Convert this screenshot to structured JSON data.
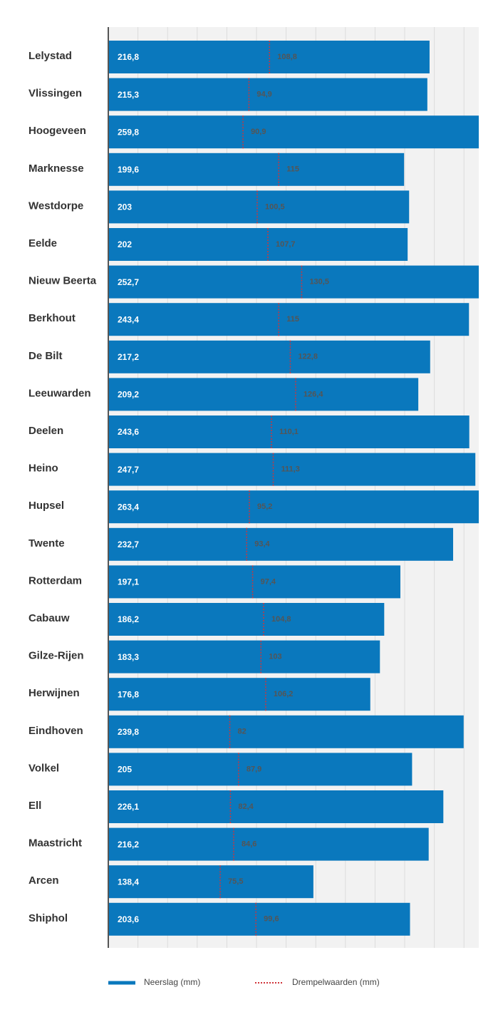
{
  "chart_data": {
    "type": "bar",
    "orientation": "horizontal",
    "categories": [
      "Lelystad",
      "Vlissingen",
      "Hoogeveen",
      "Marknesse",
      "Westdorpe",
      "Eelde",
      "Nieuw Beerta",
      "Berkhout",
      "De Bilt",
      "Leeuwarden",
      "Deelen",
      "Heino",
      "Hupsel",
      "Twente",
      "Rotterdam",
      "Cabauw",
      "Gilze-Rijen",
      "Herwijnen",
      "Eindhoven",
      "Volkel",
      "Ell",
      "Maastricht",
      "Arcen",
      "Shiphol"
    ],
    "series": [
      {
        "name": "Neerslag (mm)",
        "color": "#0a78bd",
        "values": [
          216.8,
          215.3,
          259.8,
          199.6,
          203,
          202,
          252.7,
          243.4,
          217.2,
          209.2,
          243.6,
          247.7,
          263.4,
          232.7,
          197.1,
          186.2,
          183.3,
          176.8,
          239.8,
          205,
          226.1,
          216.2,
          138.4,
          203.6
        ],
        "value_labels": [
          "216,8",
          "215,3",
          "259,8",
          "199,6",
          "203",
          "202",
          "252,7",
          "243,4",
          "217,2",
          "209,2",
          "243,6",
          "247,7",
          "263,4",
          "232,7",
          "197,1",
          "186,2",
          "183,3",
          "176,8",
          "239,8",
          "205",
          "226,1",
          "216,2",
          "138,4",
          "203,6"
        ]
      },
      {
        "name": "Drempelwaarden (mm)",
        "color": "#d0343a",
        "values": [
          108.8,
          94.9,
          90.9,
          115,
          100.5,
          107.7,
          130.5,
          115,
          122.8,
          126.4,
          110.1,
          111.3,
          95.2,
          93.4,
          97.4,
          104.8,
          103,
          106.2,
          82,
          87.9,
          82.4,
          84.6,
          75.5,
          99.6
        ],
        "value_labels": [
          "108,8",
          "94,9",
          "90,9",
          "115",
          "100,5",
          "107,7",
          "130,5",
          "115",
          "122,8",
          "126,4",
          "110,1",
          "111,3",
          "95,2",
          "93,4",
          "97,4",
          "104,8",
          "103",
          "106,2",
          "82",
          "87,9",
          "82,4",
          "84,6",
          "75,5",
          "99,6"
        ]
      }
    ],
    "xlim": [
      0,
      250
    ],
    "xticks": [
      0,
      20,
      40,
      60,
      80,
      100,
      120,
      140,
      160,
      180,
      200,
      220,
      240
    ],
    "grid": true
  }
}
